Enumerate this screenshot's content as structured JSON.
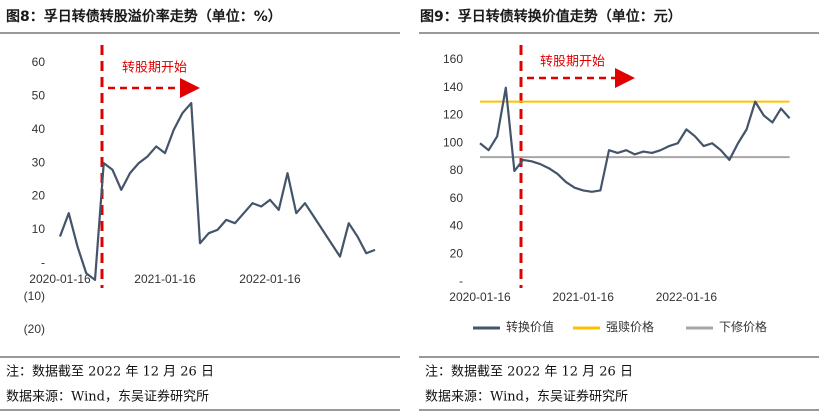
{
  "chart_data": [
    {
      "type": "line",
      "title": "图8：孚日转债转股溢价率走势（单位：%）",
      "annotation": "转股期开始",
      "categories": [
        "2020-01-16",
        null,
        null,
        null,
        null,
        null,
        null,
        null,
        null,
        null,
        null,
        null,
        "2021-01-16",
        null,
        null,
        null,
        null,
        null,
        null,
        null,
        null,
        null,
        null,
        null,
        "2022-01-16",
        null,
        null,
        null,
        null,
        null,
        null,
        null,
        null,
        null,
        null,
        null,
        null
      ],
      "values": [
        8,
        15,
        5,
        -3,
        -5,
        30,
        28,
        22,
        27,
        30,
        32,
        35,
        33,
        40,
        45,
        48,
        6,
        9,
        10,
        13,
        12,
        15,
        18,
        17,
        19,
        16,
        27,
        15,
        18,
        14,
        10,
        6,
        2,
        12,
        8,
        3,
        4
      ],
      "color": "#44546a",
      "ylim": [
        -20,
        60
      ],
      "yticks": [
        {
          "value": -20,
          "label": "(20)"
        },
        {
          "value": -10,
          "label": "(10)"
        },
        {
          "value": 0,
          "label": "-"
        },
        10,
        20,
        30,
        40,
        50,
        60
      ]
    },
    {
      "type": "line",
      "title": "图9：孚日转债转换价值走势（单位：元）",
      "annotation": "转股期开始",
      "categories": [
        "2020-01-16",
        null,
        null,
        null,
        null,
        null,
        null,
        null,
        null,
        null,
        null,
        null,
        "2021-01-16",
        null,
        null,
        null,
        null,
        null,
        null,
        null,
        null,
        null,
        null,
        null,
        "2022-01-16",
        null,
        null,
        null,
        null,
        null,
        null,
        null,
        null,
        null,
        null,
        null,
        null
      ],
      "series": [
        {
          "name": "转换价值",
          "color": "#44546a",
          "values": [
            100,
            95,
            105,
            140,
            80,
            88,
            87,
            85,
            82,
            78,
            72,
            68,
            66,
            65,
            66,
            95,
            93,
            95,
            92,
            94,
            93,
            95,
            98,
            100,
            110,
            105,
            98,
            100,
            95,
            88,
            100,
            110,
            130,
            120,
            115,
            125,
            118
          ]
        },
        {
          "name": "强赎价格",
          "color": "#ffc000",
          "values": [
            130,
            130,
            130,
            130,
            130,
            130,
            130,
            130,
            130,
            130,
            130,
            130,
            130,
            130,
            130,
            130,
            130,
            130,
            130,
            130,
            130,
            130,
            130,
            130,
            130,
            130,
            130,
            130,
            130,
            130,
            130,
            130,
            130,
            130,
            130,
            130,
            130
          ]
        },
        {
          "name": "下修价格",
          "color": "#a6a6a6",
          "values": [
            90,
            90,
            90,
            90,
            90,
            90,
            90,
            90,
            90,
            90,
            90,
            90,
            90,
            90,
            90,
            90,
            90,
            90,
            90,
            90,
            90,
            90,
            90,
            90,
            90,
            90,
            90,
            90,
            90,
            90,
            90,
            90,
            90,
            90,
            90,
            90,
            90
          ]
        }
      ],
      "ylim": [
        0,
        160
      ],
      "yticks": [
        {
          "value": 0,
          "label": "-"
        },
        20,
        40,
        60,
        80,
        100,
        120,
        140,
        160
      ],
      "legend": "bottom"
    }
  ],
  "footnotes": [
    [
      "注：数据截至 2022 年 12 月 26 日",
      "数据来源：Wind，东吴证券研究所"
    ],
    [
      "注：数据截至 2022 年 12 月 26 日",
      "数据来源：Wind，东吴证券研究所"
    ]
  ]
}
